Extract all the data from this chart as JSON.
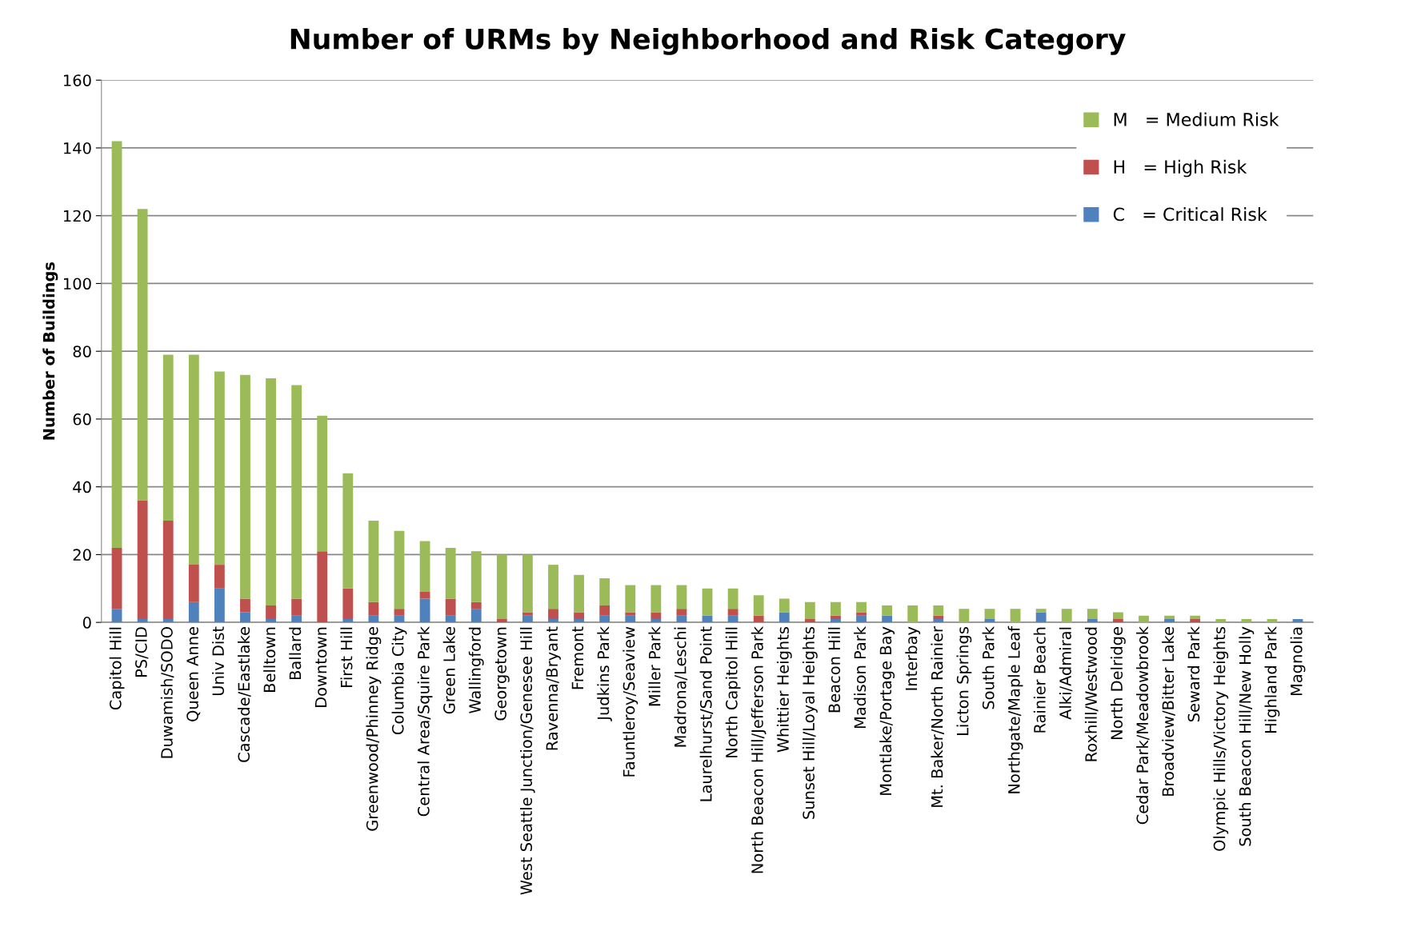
{
  "chart_data": {
    "type": "bar",
    "title": "Number of URMs by Neighborhood and Risk Category",
    "ylabel": "Number of Buildings",
    "categories": [
      "Capitol Hill",
      "PS/CID",
      "Duwamish/SODO",
      "Queen Anne",
      "Univ Dist",
      "Cascade/Eastlake",
      "Belltown",
      "Ballard",
      "Downtown",
      "First Hill",
      "Greenwood/Phinney Ridge",
      "Columbia City",
      "Central Area/Squire Park",
      "Green Lake",
      "Wallingford",
      "Georgetown",
      "West Seattle Junction/Genesee Hill",
      "Ravenna/Bryant",
      "Fremont",
      "Judkins Park",
      "Fauntleroy/Seaview",
      "Miller Park",
      "Madrona/Leschi",
      "Laurelhurst/Sand Point",
      "North Capitol Hill",
      "North Beacon Hill/Jefferson Park",
      "Whittier Heights",
      "Sunset Hill/Loyal Heights",
      "Beacon Hill",
      "Madison Park",
      "Montlake/Portage Bay",
      "Interbay",
      "Mt. Baker/North Rainier",
      "Licton Springs",
      "South Park",
      "Northgate/Maple Leaf",
      "Rainier Beach",
      "Alki/Admiral",
      "Roxhill/Westwood",
      "North Delridge",
      "Cedar Park/Meadowbrook",
      "Broadview/Bitter Lake",
      "Seward Park",
      "Olympic Hills/Victory Heights",
      "South Beacon Hill/New Holly",
      "Highland Park",
      "Magnolia"
    ],
    "series": [
      {
        "name": "C   = Critical Risk",
        "color": "#4f81bd",
        "values": [
          4,
          1,
          1,
          6,
          10,
          3,
          1,
          2,
          0,
          1,
          2,
          2,
          7,
          2,
          4,
          0,
          2,
          1,
          1,
          2,
          2,
          1,
          2,
          2,
          2,
          0,
          3,
          0,
          1,
          2,
          2,
          0,
          1,
          0,
          1,
          0,
          3,
          0,
          1,
          0,
          0,
          1,
          0,
          0,
          0,
          0,
          1
        ]
      },
      {
        "name": "H   = High Risk",
        "color": "#c0504d",
        "values": [
          18,
          35,
          29,
          11,
          7,
          4,
          4,
          5,
          21,
          9,
          4,
          2,
          2,
          5,
          2,
          1,
          1,
          3,
          2,
          3,
          1,
          2,
          2,
          0,
          2,
          2,
          0,
          1,
          1,
          1,
          0,
          0,
          1,
          0,
          0,
          0,
          0,
          0,
          0,
          1,
          0,
          0,
          1,
          0,
          0,
          0,
          0
        ]
      },
      {
        "name": "M   = Medium Risk",
        "color": "#9bbb59",
        "values": [
          120,
          86,
          49,
          62,
          57,
          66,
          67,
          63,
          40,
          34,
          24,
          23,
          15,
          15,
          15,
          19,
          17,
          13,
          11,
          8,
          8,
          8,
          7,
          8,
          6,
          6,
          4,
          5,
          4,
          3,
          3,
          5,
          3,
          4,
          3,
          4,
          1,
          4,
          3,
          2,
          2,
          1,
          1,
          1,
          1,
          1,
          0
        ]
      }
    ],
    "stacked": true,
    "ylim": [
      0,
      160
    ],
    "yticks": [
      0,
      20,
      40,
      60,
      80,
      100,
      120,
      140,
      160
    ],
    "grid": "y",
    "legend": "top right"
  }
}
